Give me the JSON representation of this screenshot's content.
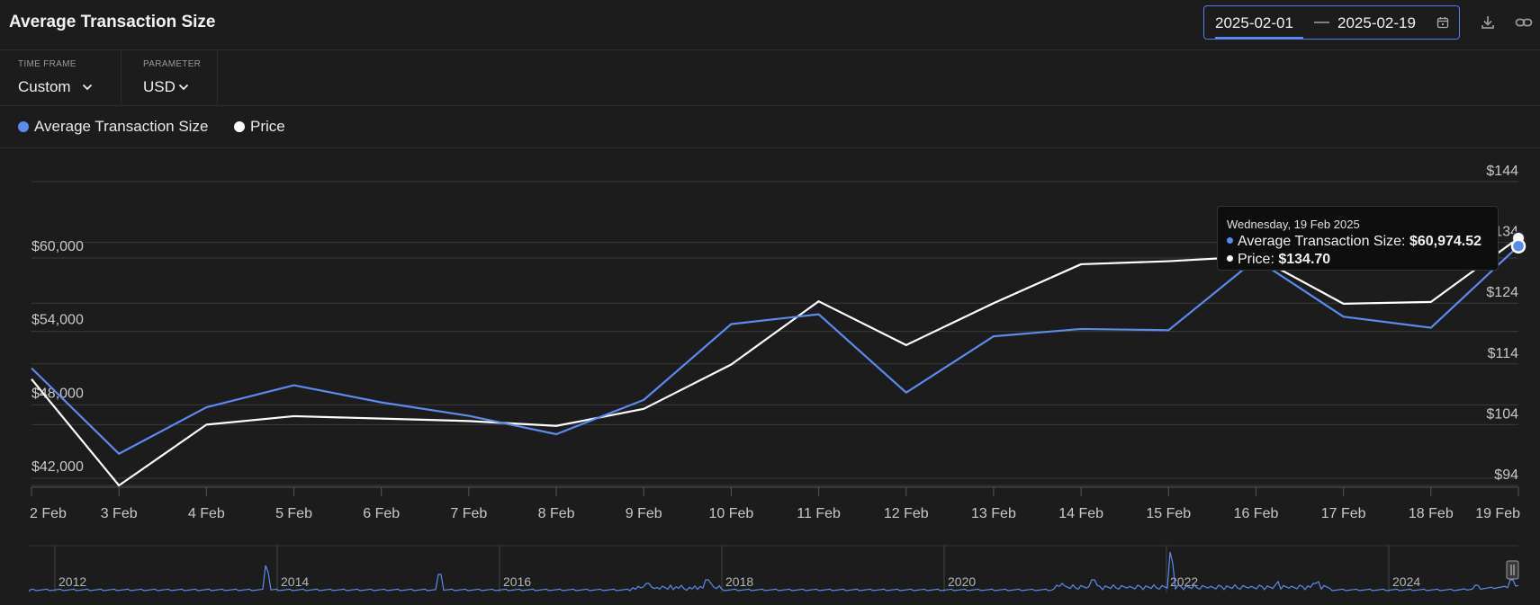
{
  "header": {
    "title": "Average Transaction Size",
    "date_from": "2025-02-01",
    "separator": "—",
    "date_to": "2025-02-19"
  },
  "controls": {
    "time_frame_label": "TIME FRAME",
    "time_frame_value": "Custom",
    "parameter_label": "PARAMETER",
    "parameter_value": "USD"
  },
  "legend": {
    "series1": "Average Transaction Size",
    "series2": "Price"
  },
  "tooltip": {
    "date": "Wednesday, 19 Feb 2025",
    "series1_label": "Average Transaction Size:",
    "series1_value": "$60,974.52",
    "series2_label": "Price:",
    "series2_value": "$134.70"
  },
  "colors": {
    "series1": "#5b8af0",
    "series2": "#ffffff",
    "grid": "#3a3a3a",
    "axis_text": "#c8c8c8"
  },
  "chart_data": {
    "type": "line",
    "categories": [
      "2 Feb",
      "3 Feb",
      "4 Feb",
      "5 Feb",
      "6 Feb",
      "7 Feb",
      "8 Feb",
      "9 Feb",
      "10 Feb",
      "11 Feb",
      "12 Feb",
      "13 Feb",
      "14 Feb",
      "15 Feb",
      "16 Feb",
      "17 Feb",
      "18 Feb",
      "19 Feb"
    ],
    "series": [
      {
        "name": "Average Transaction Size",
        "axis": "left",
        "values": [
          51000,
          44000,
          47800,
          49600,
          48200,
          47100,
          45600,
          48400,
          54600,
          55400,
          49000,
          53600,
          54200,
          54100,
          59900,
          55200,
          54300,
          60974.52
        ]
      },
      {
        "name": "Price",
        "axis": "right",
        "values": [
          111.5,
          94,
          104,
          105.4,
          105,
          104.6,
          103.8,
          106.6,
          113.9,
          124.3,
          117.1,
          124,
          130.4,
          130.9,
          131.7,
          123.9,
          124.2,
          134.7
        ]
      }
    ],
    "left_axis": {
      "ticks": [
        "$42,000",
        "$48,000",
        "$54,000",
        "$60,000"
      ],
      "tick_values": [
        42000,
        48000,
        54000,
        60000
      ]
    },
    "right_axis": {
      "ticks": [
        "$94",
        "$104",
        "$114",
        "$124",
        "$134",
        "$144"
      ],
      "tick_values": [
        94,
        104,
        114,
        124,
        134,
        144
      ]
    },
    "grid": true,
    "legend_position": "top-left"
  },
  "navigator": {
    "year_labels": [
      "2012",
      "2014",
      "2016",
      "2018",
      "2020",
      "2022",
      "2024"
    ]
  }
}
